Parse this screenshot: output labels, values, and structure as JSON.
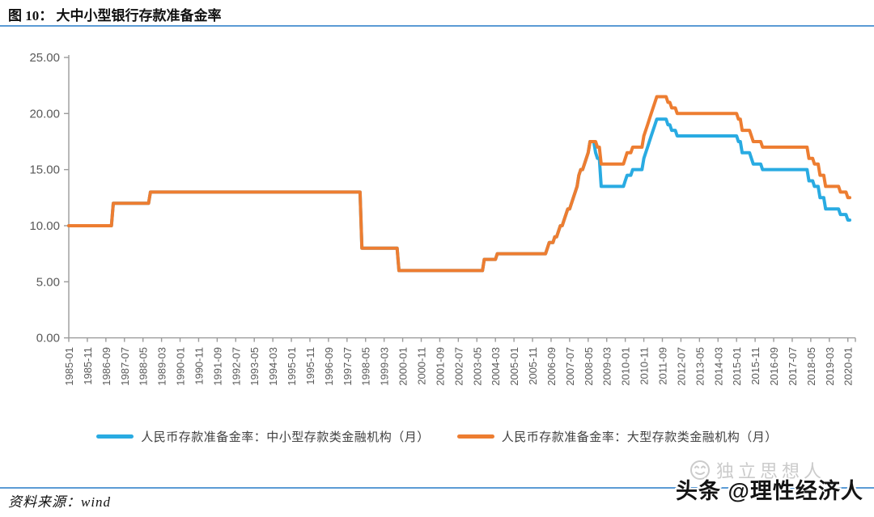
{
  "title": "图 10： 大中小型银行存款准备金率",
  "source_note": "资料来源：wind",
  "watermark": {
    "gray_text": "独立思想人",
    "black_text": "头条 @理性经济人"
  },
  "colors": {
    "rule_blue": "#5B9BD5",
    "axis_gray": "#9B9B9B",
    "tick_label_gray": "#595959",
    "series_blue": "#29ABE2",
    "series_orange": "#ED7D31"
  },
  "chart_data": {
    "type": "line",
    "subtype": "monthly-step",
    "title": "大中小型银行存款准备金率",
    "xlabel": "",
    "ylabel": "",
    "ylim": [
      0,
      25
    ],
    "grid": false,
    "legend_position": "bottom",
    "y_tick_labels": [
      "25.00",
      "20.00",
      "15.00",
      "10.00",
      "5.00",
      "0.00"
    ],
    "x_labels": [
      "1985-01",
      "1985-11",
      "1986-09",
      "1987-07",
      "1988-05",
      "1989-03",
      "1990-01",
      "1990-11",
      "1991-09",
      "1992-07",
      "1993-05",
      "1994-03",
      "1995-01",
      "1995-11",
      "1996-09",
      "1997-07",
      "1998-05",
      "1999-03",
      "2000-01",
      "2000-11",
      "2001-09",
      "2002-07",
      "2003-05",
      "2004-03",
      "2005-01",
      "2005-11",
      "2006-09",
      "2007-07",
      "2008-05",
      "2009-03",
      "2010-01",
      "2010-11",
      "2011-09",
      "2012-07",
      "2013-05",
      "2014-03",
      "2015-01",
      "2015-11",
      "2016-09",
      "2017-07",
      "2018-05",
      "2019-03",
      "2020-01"
    ],
    "x_label_interval_months": 10,
    "x_start": "1985-01",
    "x_end": "2020-02",
    "series": [
      {
        "name": "人民币存款准备金率：中小型存款类金融机构（月）",
        "color": "#29ABE2",
        "steps": [
          [
            "1985-01",
            10
          ],
          [
            "1987-01",
            12
          ],
          [
            "1988-09",
            13
          ],
          [
            "1998-03",
            8
          ],
          [
            "1999-11",
            6
          ],
          [
            "2003-09",
            7
          ],
          [
            "2004-04",
            7.5
          ],
          [
            "2006-07",
            8
          ],
          [
            "2006-08",
            8.5
          ],
          [
            "2006-11",
            9
          ],
          [
            "2007-01",
            9.5
          ],
          [
            "2007-02",
            10
          ],
          [
            "2007-04",
            10.5
          ],
          [
            "2007-05",
            11
          ],
          [
            "2007-06",
            11.5
          ],
          [
            "2007-08",
            12
          ],
          [
            "2007-09",
            12.5
          ],
          [
            "2007-10",
            13
          ],
          [
            "2007-11",
            13.5
          ],
          [
            "2007-12",
            14.5
          ],
          [
            "2008-01",
            15
          ],
          [
            "2008-03",
            15.5
          ],
          [
            "2008-04",
            16
          ],
          [
            "2008-05",
            16.5
          ],
          [
            "2008-06",
            17.5
          ],
          [
            "2008-09",
            16.5
          ],
          [
            "2008-10",
            16
          ],
          [
            "2008-12",
            13.5
          ],
          [
            "2010-01",
            14
          ],
          [
            "2010-02",
            14.5
          ],
          [
            "2010-05",
            15
          ],
          [
            "2010-11",
            16
          ],
          [
            "2010-12",
            16.5
          ],
          [
            "2011-01",
            17
          ],
          [
            "2011-02",
            17.5
          ],
          [
            "2011-03",
            18
          ],
          [
            "2011-04",
            18.5
          ],
          [
            "2011-05",
            19
          ],
          [
            "2011-06",
            19.5
          ],
          [
            "2011-12",
            19
          ],
          [
            "2012-02",
            18.5
          ],
          [
            "2012-05",
            18
          ],
          [
            "2015-02",
            17.5
          ],
          [
            "2015-04",
            16.5
          ],
          [
            "2015-09",
            16
          ],
          [
            "2015-10",
            15.5
          ],
          [
            "2016-03",
            15
          ],
          [
            "2018-04",
            14
          ],
          [
            "2018-07",
            13.5
          ],
          [
            "2018-10",
            12.5
          ],
          [
            "2019-01",
            11.5
          ],
          [
            "2019-09",
            11
          ],
          [
            "2020-01",
            10.5
          ]
        ]
      },
      {
        "name": "人民币存款准备金率：大型存款类金融机构（月）",
        "color": "#ED7D31",
        "steps": [
          [
            "1985-01",
            10
          ],
          [
            "1987-01",
            12
          ],
          [
            "1988-09",
            13
          ],
          [
            "1998-03",
            8
          ],
          [
            "1999-11",
            6
          ],
          [
            "2003-09",
            7
          ],
          [
            "2004-04",
            7.5
          ],
          [
            "2006-07",
            8
          ],
          [
            "2006-08",
            8.5
          ],
          [
            "2006-11",
            9
          ],
          [
            "2007-01",
            9.5
          ],
          [
            "2007-02",
            10
          ],
          [
            "2007-04",
            10.5
          ],
          [
            "2007-05",
            11
          ],
          [
            "2007-06",
            11.5
          ],
          [
            "2007-08",
            12
          ],
          [
            "2007-09",
            12.5
          ],
          [
            "2007-10",
            13
          ],
          [
            "2007-11",
            13.5
          ],
          [
            "2007-12",
            14.5
          ],
          [
            "2008-01",
            15
          ],
          [
            "2008-03",
            15.5
          ],
          [
            "2008-04",
            16
          ],
          [
            "2008-05",
            16.5
          ],
          [
            "2008-06",
            17.5
          ],
          [
            "2008-10",
            17
          ],
          [
            "2008-12",
            15.5
          ],
          [
            "2010-01",
            16
          ],
          [
            "2010-02",
            16.5
          ],
          [
            "2010-05",
            17
          ],
          [
            "2010-11",
            18
          ],
          [
            "2010-12",
            18.5
          ],
          [
            "2011-01",
            19
          ],
          [
            "2011-02",
            19.5
          ],
          [
            "2011-03",
            20
          ],
          [
            "2011-04",
            20.5
          ],
          [
            "2011-05",
            21
          ],
          [
            "2011-06",
            21.5
          ],
          [
            "2011-12",
            21
          ],
          [
            "2012-02",
            20.5
          ],
          [
            "2012-05",
            20
          ],
          [
            "2015-02",
            19.5
          ],
          [
            "2015-04",
            18.5
          ],
          [
            "2015-09",
            18
          ],
          [
            "2015-10",
            17.5
          ],
          [
            "2016-03",
            17
          ],
          [
            "2018-04",
            16
          ],
          [
            "2018-07",
            15.5
          ],
          [
            "2018-10",
            14.5
          ],
          [
            "2019-01",
            13.5
          ],
          [
            "2019-09",
            13
          ],
          [
            "2020-01",
            12.5
          ]
        ]
      }
    ]
  }
}
